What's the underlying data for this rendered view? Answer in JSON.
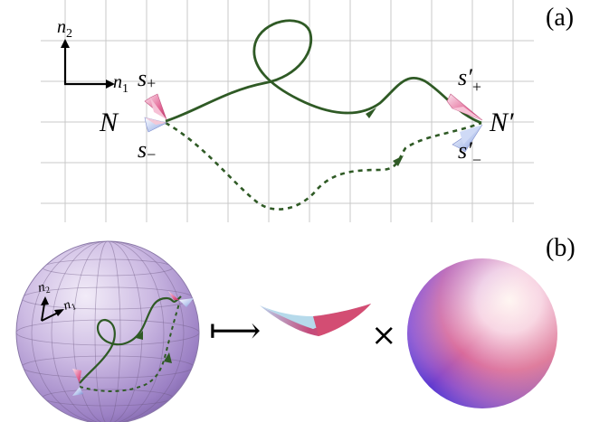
{
  "panel_a": {
    "label": "(a)",
    "axis_n2": "n",
    "axis_n2_sub": "2",
    "axis_n1": "n",
    "axis_n1_sub": "1",
    "point_start": "N",
    "point_end": "N′",
    "s_plus": "s",
    "s_plus_sub": "+",
    "s_minus": "s",
    "s_minus_sub": "−",
    "s_plus_prime": "s′",
    "s_plus_prime_sub": "+",
    "s_minus_prime": "s′",
    "s_minus_prime_sub": "−"
  },
  "panel_b": {
    "label": "(b)",
    "axis_n2": "n",
    "axis_n2_sub": "2",
    "axis_n1": "n",
    "axis_n1_sub": "1",
    "maps_to_symbol": "⟼",
    "times_symbol": "×"
  },
  "colors": {
    "path": "#2f5a25",
    "grid": "#c8c8c8",
    "spin_pink": "#e05a8c",
    "sphere_purple": "#9b86c6"
  }
}
